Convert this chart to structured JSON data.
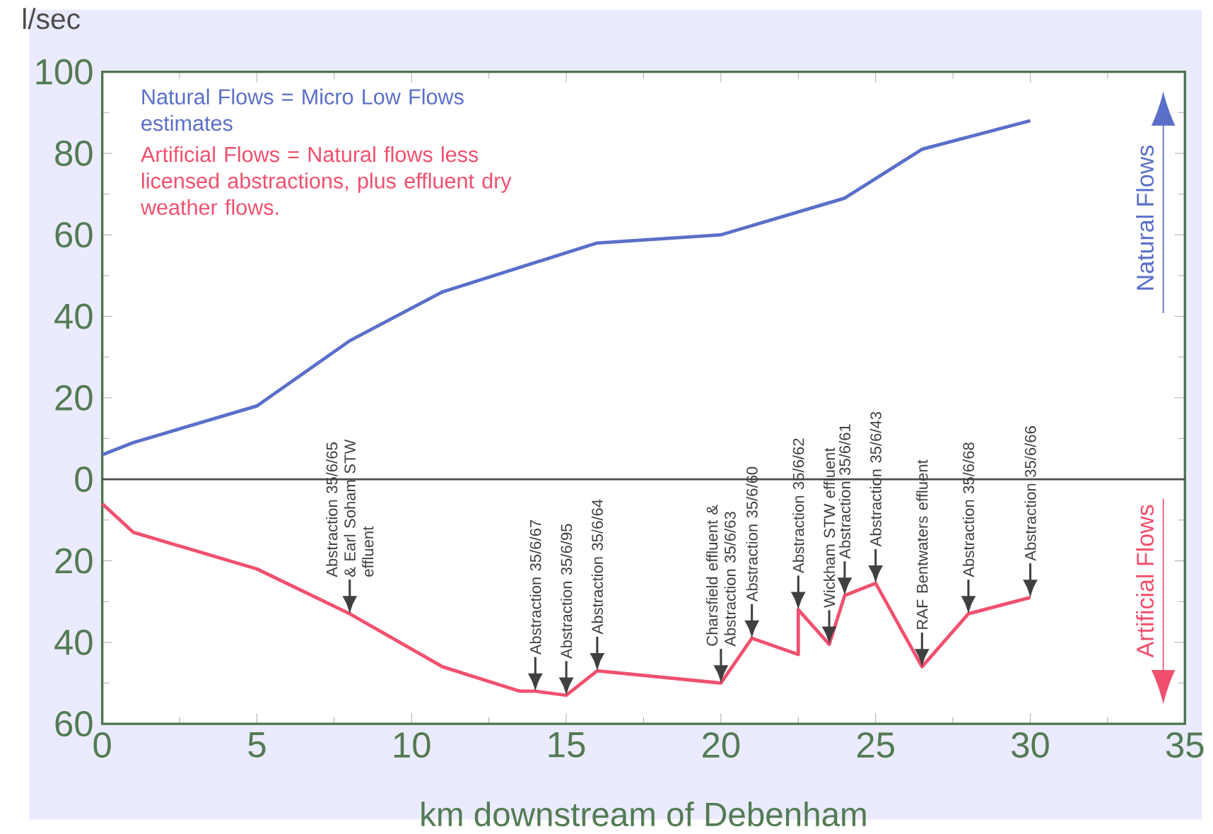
{
  "chart_data": {
    "type": "line",
    "ylabel": "l/sec",
    "xlabel": "km downstream of Debenham",
    "xlim": [
      0,
      35
    ],
    "xticks": [
      0,
      5,
      10,
      15,
      20,
      25,
      30,
      35
    ],
    "ylim": [
      -60,
      100
    ],
    "yticks": [
      {
        "value": -60,
        "label": "60"
      },
      {
        "value": -40,
        "label": "40"
      },
      {
        "value": -20,
        "label": "20"
      },
      0,
      20,
      40,
      60,
      80,
      100
    ],
    "legend": "top left",
    "grid": false,
    "marker": "none",
    "line_style": "solid",
    "ref_lines": [
      {
        "axis": "y",
        "value": 0
      }
    ],
    "series": [
      {
        "name": "Natural Flows = Micro Low Flows estimates",
        "color": "#5a6fc8",
        "x": [
          0,
          1,
          5,
          8,
          11,
          16,
          20,
          24,
          26.5,
          30
        ],
        "values": [
          6,
          9,
          18,
          34,
          46,
          58,
          60,
          69,
          81,
          88
        ]
      },
      {
        "name": "Artificial Flows = Natural flows less licensed abstractions, plus effluent dry weather flows.",
        "color": "#f0506e",
        "x": [
          0,
          1,
          5,
          8,
          11,
          13.5,
          14,
          15,
          16,
          20,
          21,
          22.5,
          22.5,
          23.5,
          24,
          25,
          26.5,
          28,
          30
        ],
        "values": [
          -6,
          -13,
          -22,
          -33,
          -46,
          -52,
          -52,
          -53,
          -47,
          -50,
          -39,
          -43,
          -32,
          -40.5,
          -28.5,
          -25.5,
          -46,
          -33,
          -29
        ]
      }
    ],
    "annotations": [
      "Natural Flows",
      "Artificial Flows",
      {
        "text": "Abstraction 35/6/65 & Earl Soham STW effluent",
        "x": 8,
        "y": -33
      },
      {
        "text": "Abstraction 35/6/67",
        "x": 14,
        "y": -52
      },
      {
        "text": "Abstraction 35/6/95",
        "x": 15,
        "y": -53
      },
      {
        "text": "Abstraction 35/6/64",
        "x": 16,
        "y": -47
      },
      {
        "text": "Charsfield effluent & Abstraction 35/6/63",
        "x": 20,
        "y": -50
      },
      {
        "text": "Abstraction 35/6/60",
        "x": 21,
        "y": -39
      },
      {
        "text": "Abstraction 35/6/62",
        "x": 22.5,
        "y": -32
      },
      {
        "text": "Wickham STW effluent",
        "x": 23.5,
        "y": -40.5
      },
      {
        "text": "Abstraction 35/6/61",
        "x": 24,
        "y": -28.5
      },
      {
        "text": "Abstraction 35/6/43",
        "x": 25,
        "y": -25.5
      },
      {
        "text": "RAF Bentwaters effluent",
        "x": 26.5,
        "y": -46
      },
      {
        "text": "Abstraction 35/6/68",
        "x": 28,
        "y": -33
      },
      {
        "text": "Abstraction 35/6/66",
        "x": 30,
        "y": -29
      }
    ]
  }
}
